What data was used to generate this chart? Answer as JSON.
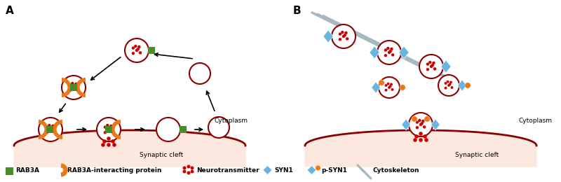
{
  "bg_color": "#ffffff",
  "membrane_fill": "#fde8e0",
  "membrane_edge": "#8b0000",
  "vesicle_fill": "#ffffff",
  "vesicle_edge": "#8b0000",
  "dot_color": "#cc0000",
  "rab3a_color": "#4a8c2a",
  "rab3a_interacting_color": "#e87818",
  "syn1_color": "#6ab4e0",
  "psyn1_dot_color": "#e87818",
  "cytoskeleton_color": "#a8b8c0",
  "label_A": "A",
  "label_B": "B",
  "cytoplasm_text": "Cytoplasm",
  "synaptic_text": "Synaptic cleft",
  "legend_items": [
    "RAB3A",
    "RAB3A-interacting protein",
    "Neurotransmitter",
    "SYN1",
    "p-SYN1",
    "Cytoskeleton"
  ]
}
